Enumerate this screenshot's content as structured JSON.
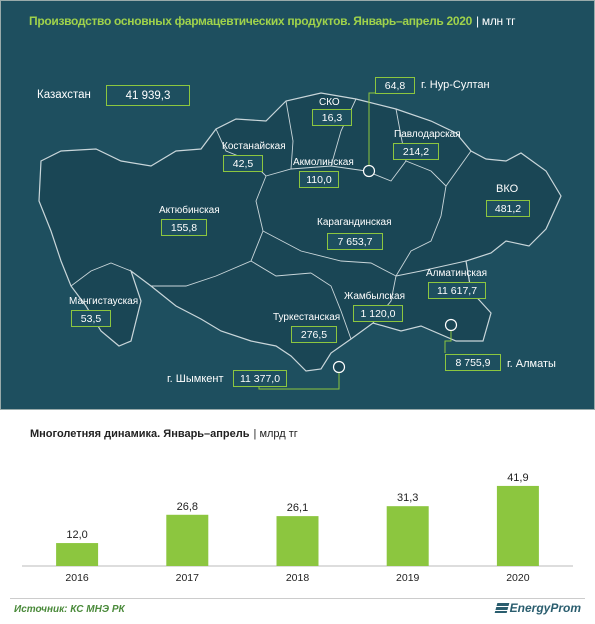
{
  "header": {
    "title": "Производство основных фармацевтических продуктов. Январь–апрель 2020",
    "unit": "| млн тг"
  },
  "total": {
    "label": "Казахстан",
    "value": "41 939,3"
  },
  "regions": [
    {
      "id": "sko",
      "name": "СКО",
      "value": "16,3"
    },
    {
      "id": "nur-sultan",
      "name": "г. Нур-Султан",
      "value": "64,8"
    },
    {
      "id": "pavlodar",
      "name": "Павлодарская",
      "value": "214,2"
    },
    {
      "id": "kostanay",
      "name": "Костанайская",
      "value": "42,5"
    },
    {
      "id": "akmola",
      "name": "Акмолинская",
      "value": "110,0"
    },
    {
      "id": "vko",
      "name": "ВКО",
      "value": "481,2"
    },
    {
      "id": "aktobe",
      "name": "Актюбинская",
      "value": "155,8"
    },
    {
      "id": "karaganda",
      "name": "Карагандинская",
      "value": "7 653,7"
    },
    {
      "id": "almaty-obl",
      "name": "Алматинская",
      "value": "11 617,7"
    },
    {
      "id": "mangystau",
      "name": "Мангистауская",
      "value": "53,5"
    },
    {
      "id": "zhambyl",
      "name": "Жамбылская",
      "value": "1 120,0"
    },
    {
      "id": "turkestan",
      "name": "Туркестанская",
      "value": "276,5"
    },
    {
      "id": "shymkent",
      "name": "г. Шымкент",
      "value": "11 377,0"
    },
    {
      "id": "almaty-city",
      "name": "г. Алматы",
      "value": "8 755,9"
    }
  ],
  "dynamics": {
    "title": "Многолетняя динамика. Январь–апрель",
    "unit": "| млрд тг"
  },
  "chart_data": {
    "type": "bar",
    "categories": [
      "2016",
      "2017",
      "2018",
      "2019",
      "2020"
    ],
    "values": [
      12.0,
      26.8,
      26.1,
      31.3,
      41.9
    ],
    "value_labels": [
      "12,0",
      "26,8",
      "26,1",
      "31,3",
      "41,9"
    ],
    "title": "Многолетняя динамика. Январь–апрель",
    "ylabel": "млрд тг",
    "ylim": [
      0,
      45
    ],
    "grid": false,
    "bar_color": "#8cc63f"
  },
  "footer": {
    "source": "Источник: КС МНЭ РК",
    "logo": "EnergyProm"
  },
  "colors": {
    "map_background": "#1e4f5f",
    "region_fill": "#1a4655",
    "region_border": "#c9d6da",
    "accent": "#8cc63f",
    "title": "#9fd24b"
  }
}
